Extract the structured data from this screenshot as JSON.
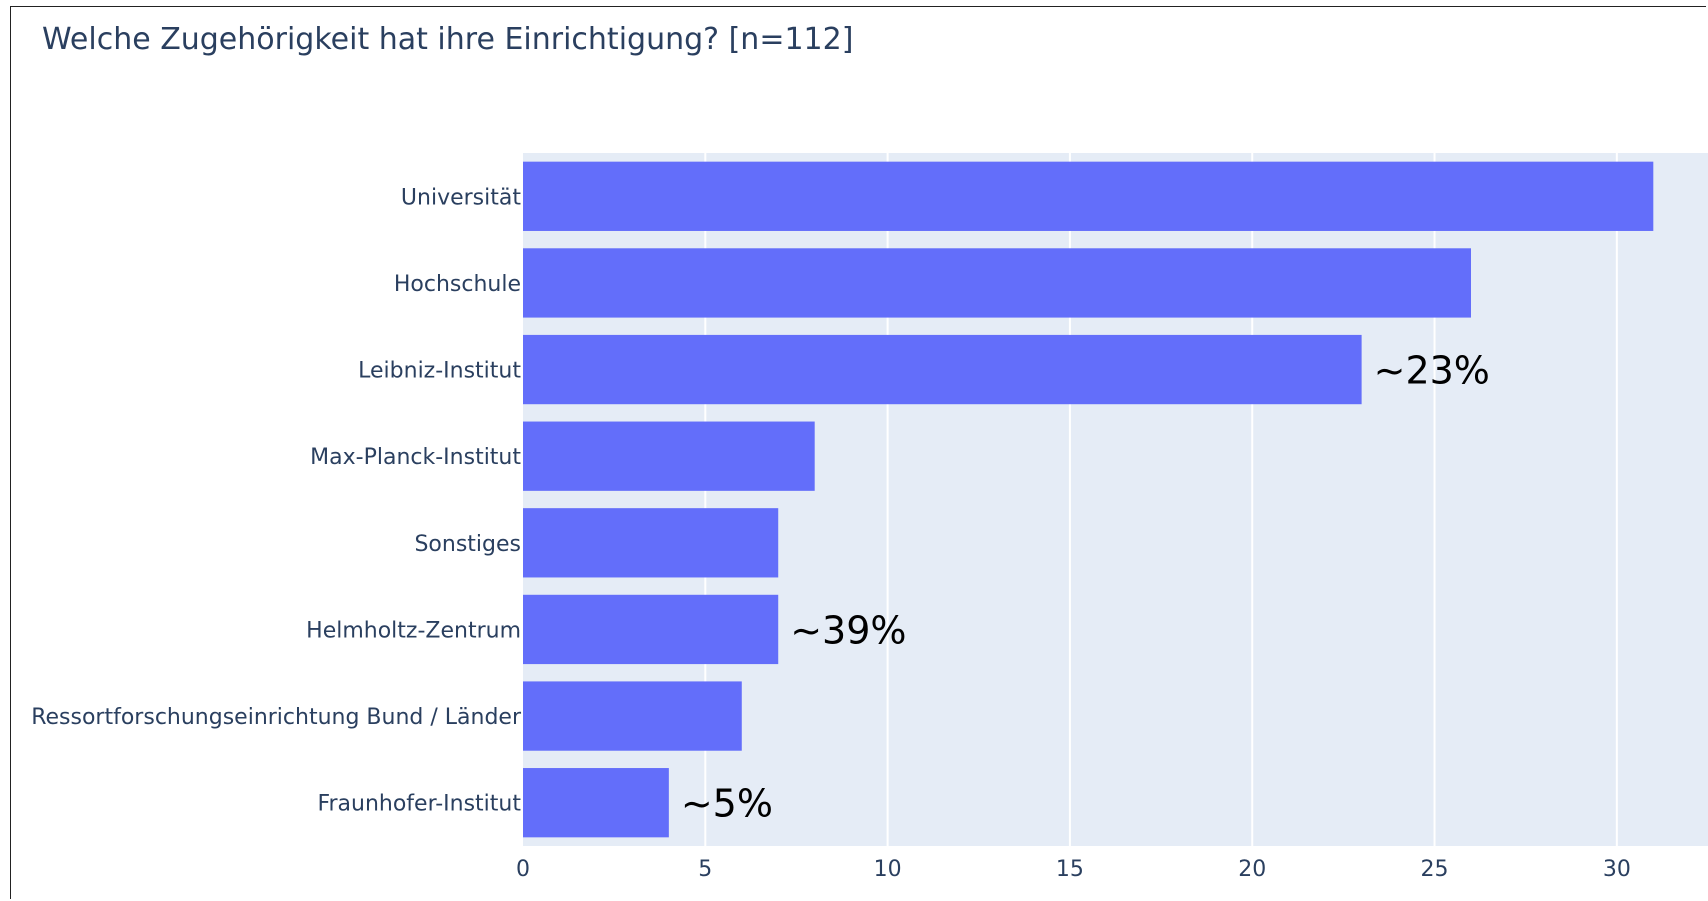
{
  "chart_data": {
    "type": "bar",
    "orientation": "horizontal",
    "title": "Welche Zugehörigkeit hat ihre Einrichtigung? [n=112]",
    "xlabel": "",
    "ylabel": "",
    "categories": [
      "Universität",
      "Hochschule",
      "Leibniz-Institut",
      "Max-Planck-Institut",
      "Sonstiges",
      "Helmholtz-Zentrum",
      "Ressortforschungseinrichtung Bund / Länder",
      "Fraunhofer-Institut"
    ],
    "values": [
      31,
      26,
      23,
      8,
      7,
      7,
      6,
      4
    ],
    "xlim": [
      0,
      32.5
    ],
    "xticks": [
      0,
      5,
      10,
      15,
      20,
      25,
      30
    ],
    "grid": true,
    "colors": {
      "bar": "#636efa",
      "plot_bg": "#e5ecf6",
      "grid": "#ffffff",
      "text": "#2a3f5f",
      "annotation": "#000000"
    },
    "annotations": [
      {
        "category": "Leibniz-Institut",
        "text": "~23%"
      },
      {
        "category": "Helmholtz-Zentrum",
        "text": "~39%"
      },
      {
        "category": "Fraunhofer-Institut",
        "text": "~5%"
      }
    ]
  }
}
